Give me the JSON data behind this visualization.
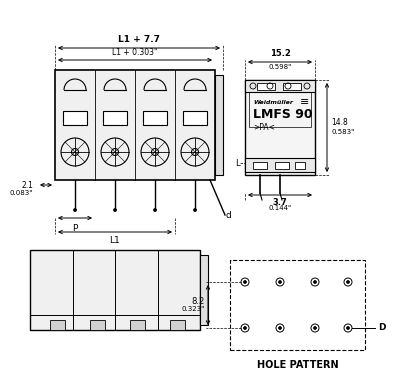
{
  "bg_color": "#ffffff",
  "line_color": "#000000",
  "gray_color": "#888888",
  "light_gray": "#cccccc",
  "dim_L1_7_7": "L1 + 7.7",
  "dim_L1_0303": "L1 + 0.303\"",
  "dim_2_1": "2.1",
  "dim_0083": "0.083\"",
  "dim_P": "P",
  "dim_L1": "L1",
  "dim_d": "d",
  "dim_15_2": "15.2",
  "dim_0598": "0.598\"",
  "dim_14_8": "14.8",
  "dim_0583": "0.583\"",
  "dim_3_7": "3.7",
  "dim_0144": "0.144\"",
  "dim_8_2": "8.2",
  "dim_0323": "0.323\"",
  "dim_D": "D",
  "label_hole": "HOLE PATTERN",
  "brand": "Weidmüller",
  "model": "LMFS 90",
  "certifications": ">PA<",
  "label_L": "L"
}
